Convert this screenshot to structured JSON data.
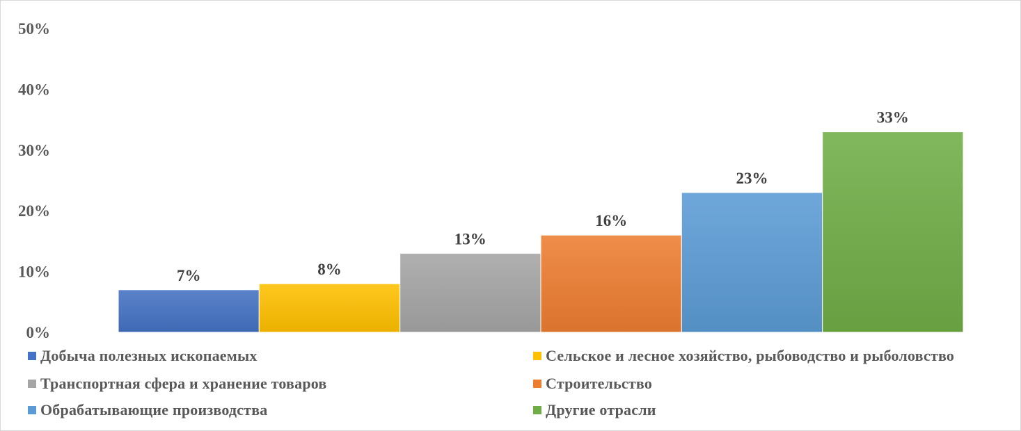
{
  "chart_data": {
    "type": "bar",
    "title": "",
    "xlabel": "",
    "ylabel": "",
    "ylim": [
      0,
      0.5
    ],
    "y_ticks": [
      "0%",
      "10%",
      "20%",
      "30%",
      "40%",
      "50%"
    ],
    "grid": false,
    "legend_position": "bottom",
    "series": [
      {
        "name": "Добыча полезных ископаемых",
        "value": 0.07,
        "label": "7%",
        "color": "#4472c4"
      },
      {
        "name": "Сельское и лесное хозяйство, рыбоводство и рыболовство",
        "value": 0.08,
        "label": "8%",
        "color": "#ffc000"
      },
      {
        "name": "Транспортная сфера и хранение товаров",
        "value": 0.13,
        "label": "13%",
        "color": "#a5a5a5"
      },
      {
        "name": "Строительство",
        "value": 0.16,
        "label": "16%",
        "color": "#ed7d31"
      },
      {
        "name": "Обрабатывающие производства",
        "value": 0.23,
        "label": "23%",
        "color": "#5b9bd5"
      },
      {
        "name": "Другие отрасли",
        "value": 0.33,
        "label": "33%",
        "color": "#70ad47"
      }
    ]
  }
}
